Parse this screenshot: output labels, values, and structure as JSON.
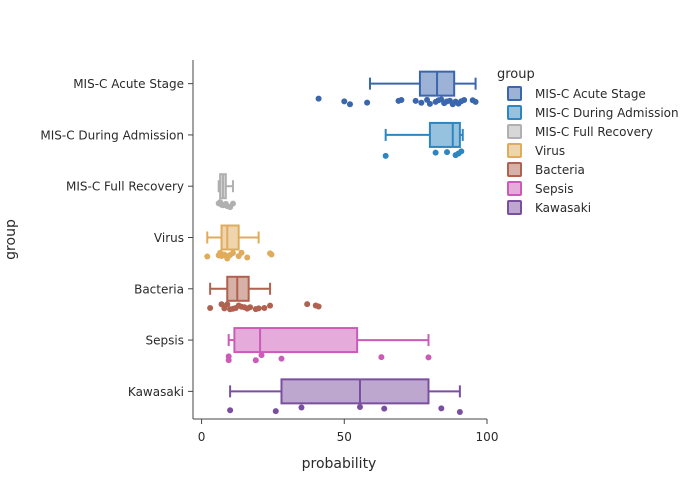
{
  "chart_data": {
    "type": "box",
    "orientation": "horizontal",
    "title": "",
    "xlabel": "probability",
    "ylabel": "group",
    "xlim": [
      -3,
      100
    ],
    "xticks": [
      0,
      50,
      100
    ],
    "grid": false,
    "legend": {
      "title": "group",
      "position": "right"
    },
    "series": [
      {
        "name": "MIS-C Acute Stage",
        "color": "#3a66ad",
        "box": {
          "min": 59,
          "q1": 76.5,
          "median": 82.5,
          "q3": 88.5,
          "max": 96
        },
        "points": [
          41,
          50,
          52,
          58,
          69,
          70,
          75,
          77,
          79,
          80,
          82,
          83,
          84,
          85,
          86,
          87,
          88,
          89,
          90,
          91,
          92,
          95,
          96
        ]
      },
      {
        "name": "MIS-C During Admission",
        "color": "#2e86c1",
        "box": {
          "min": 64.5,
          "q1": 80,
          "median": 88,
          "q3": 90.5,
          "max": 91.5
        },
        "points": [
          64.5,
          82,
          86,
          89,
          90,
          91
        ]
      },
      {
        "name": "MIS-C Full Recovery",
        "color": "#b0b0b0",
        "box": {
          "min": 6,
          "q1": 6.5,
          "median": 7.5,
          "q3": 8.5,
          "max": 11
        },
        "points": [
          6,
          6.5,
          7,
          7.5,
          8,
          8.5,
          9,
          10,
          11
        ]
      },
      {
        "name": "Virus",
        "color": "#e0ac5c",
        "box": {
          "min": 2,
          "q1": 7,
          "median": 9,
          "q3": 13,
          "max": 20
        },
        "points": [
          2,
          6,
          6.5,
          7,
          7.5,
          8,
          8.5,
          9,
          10,
          11,
          13,
          14,
          16,
          24,
          24.5
        ]
      },
      {
        "name": "Bacteria",
        "color": "#b0614f",
        "box": {
          "min": 3,
          "q1": 9,
          "median": 12.5,
          "q3": 16.5,
          "max": 24
        },
        "points": [
          3,
          7,
          8,
          9,
          10,
          11,
          12,
          13,
          14,
          15,
          16,
          17,
          19,
          20,
          22,
          24,
          37,
          40,
          41
        ]
      },
      {
        "name": "Sepsis",
        "color": "#cc5ab8",
        "box": {
          "min": 9.5,
          "q1": 11.5,
          "median": 20.5,
          "q3": 54.5,
          "max": 79.5
        },
        "points": [
          9.5,
          9.5,
          19,
          21,
          28,
          63,
          79.5
        ]
      },
      {
        "name": "Kawasaki",
        "color": "#7b4fa0",
        "box": {
          "min": 10,
          "q1": 28,
          "median": 55.5,
          "q3": 79.5,
          "max": 90.5
        },
        "points": [
          10,
          26,
          35,
          55.5,
          64,
          84,
          90.5
        ]
      }
    ]
  }
}
